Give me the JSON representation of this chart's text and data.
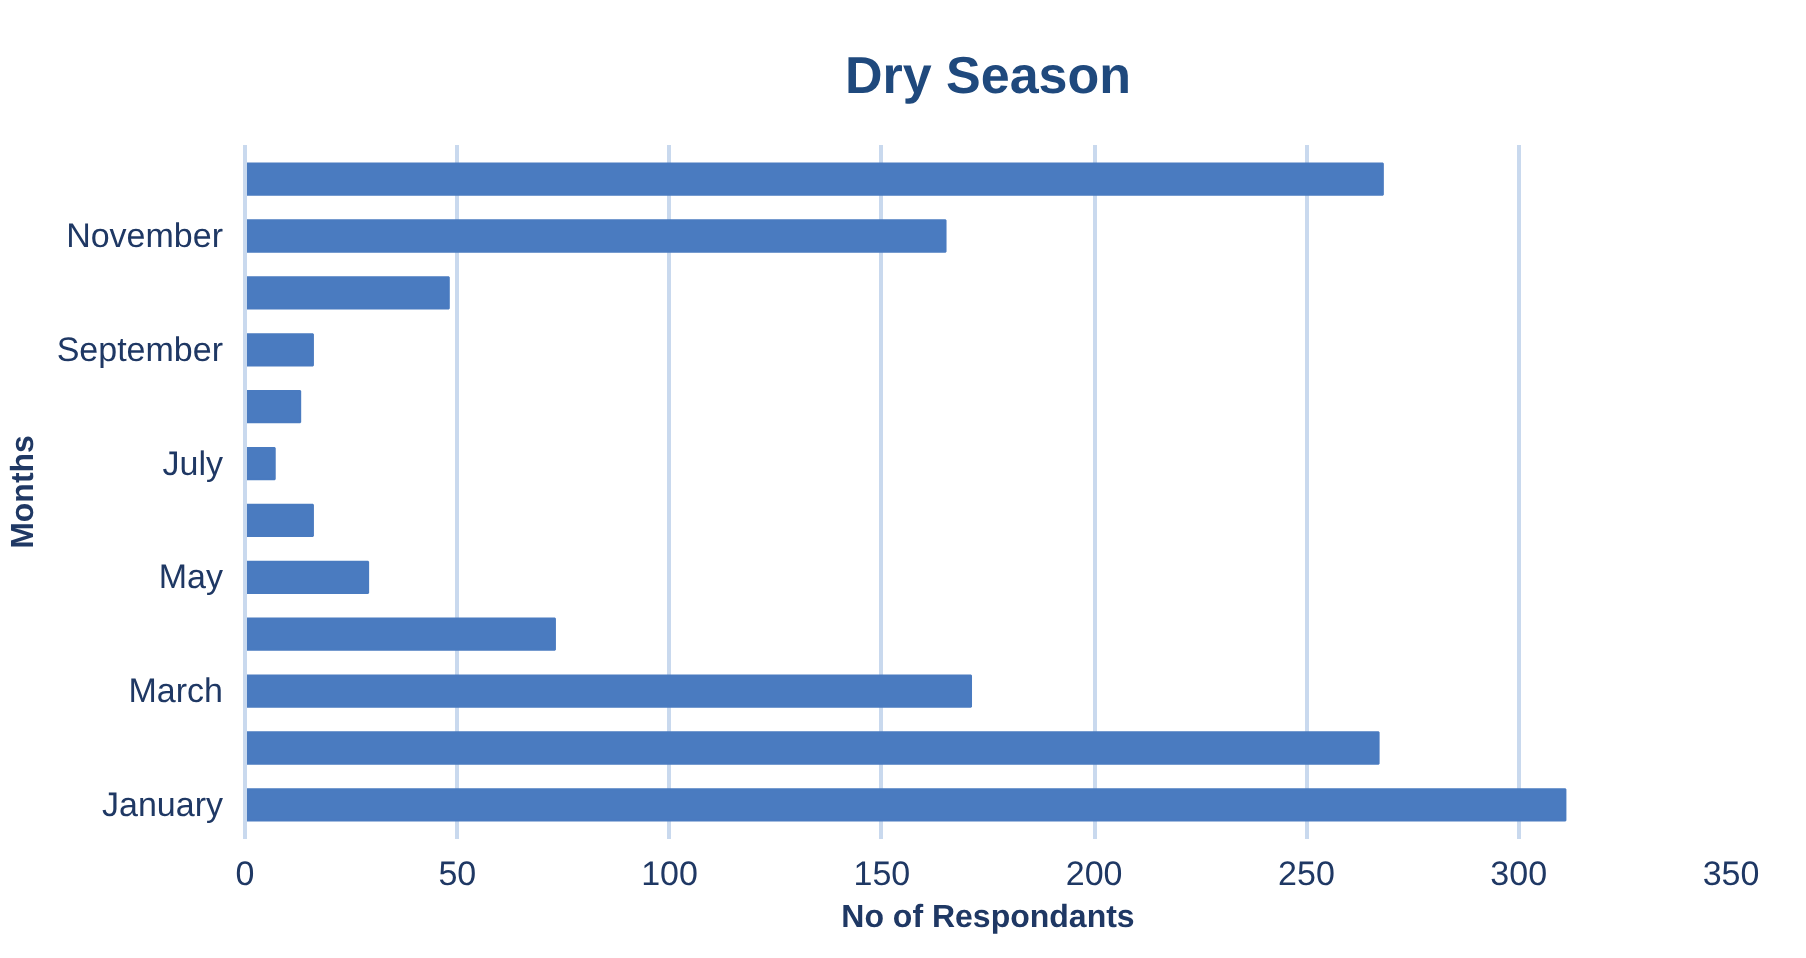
{
  "chart_data": {
    "type": "bar",
    "orientation": "horizontal",
    "title": "Dry Season",
    "xlabel": "No of Respondants",
    "ylabel": "Months",
    "categories": [
      null,
      "November",
      null,
      "September",
      null,
      "July",
      null,
      "May",
      null,
      "March",
      null,
      "January"
    ],
    "values": [
      268,
      165,
      48,
      16,
      13,
      7,
      16,
      29,
      73,
      171,
      267,
      311
    ],
    "color": "#4a7bc0",
    "xlim": [
      0,
      350
    ],
    "xticks": [
      0,
      50,
      100,
      150,
      200,
      250,
      300,
      350
    ],
    "grid": "x"
  }
}
